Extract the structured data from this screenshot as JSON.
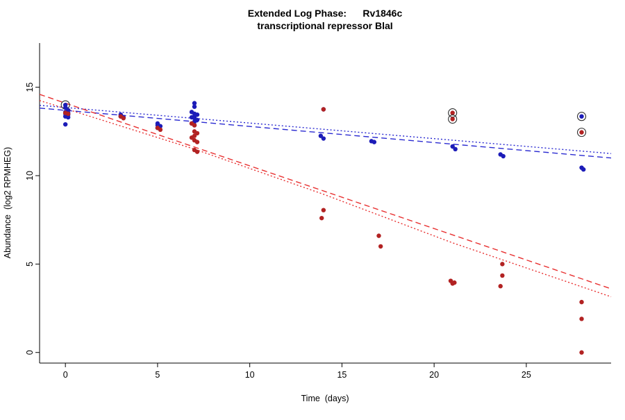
{
  "title": {
    "line1": "Extended Log Phase:      Rv1846c",
    "line2": "transcriptional repressor BlaI"
  },
  "chart_data": {
    "type": "scatter",
    "title_line1": "Extended Log Phase:      Rv1846c",
    "title_line2": "transcriptional repressor BlaI",
    "xlabel": "Time  (days)",
    "ylabel": "Abundance  (log2 RPMHEG)",
    "xlim": [
      -1.4,
      29.6
    ],
    "ylim": [
      -0.6,
      17.5
    ],
    "xticks": [
      0,
      5,
      10,
      15,
      20,
      25
    ],
    "yticks": [
      0,
      5,
      10,
      15
    ],
    "grid": false,
    "legend": null,
    "colors": {
      "blue_point": "#1c1cb8",
      "red_point": "#b22222",
      "blue_line": "#2a2ad1",
      "red_line": "#e83030",
      "circle_outline": "#2b2b2b",
      "axis": "#000000"
    },
    "series": [
      {
        "name": "blue",
        "points": [
          [
            0,
            14.0,
            true
          ],
          [
            0,
            13.85
          ],
          [
            0.15,
            13.7
          ],
          [
            0,
            13.6
          ],
          [
            0.15,
            13.55
          ],
          [
            0,
            13.5
          ],
          [
            0.15,
            13.45
          ],
          [
            0,
            13.35
          ],
          [
            0.15,
            13.3
          ],
          [
            0,
            12.9
          ],
          [
            3,
            13.45
          ],
          [
            3,
            13.35
          ],
          [
            3.15,
            13.3
          ],
          [
            5,
            12.95
          ],
          [
            5,
            12.85
          ],
          [
            5.15,
            12.8
          ],
          [
            5,
            12.7
          ],
          [
            7,
            14.1
          ],
          [
            7,
            13.9
          ],
          [
            6.85,
            13.6
          ],
          [
            7,
            13.5
          ],
          [
            7.15,
            13.45
          ],
          [
            7,
            13.35
          ],
          [
            6.85,
            13.3
          ],
          [
            7,
            13.25
          ],
          [
            7.15,
            13.15
          ],
          [
            7,
            13.05
          ],
          [
            6.85,
            12.95
          ],
          [
            7,
            12.85
          ],
          [
            14,
            13.75
          ],
          [
            13.85,
            12.25
          ],
          [
            14,
            12.1
          ],
          [
            16.6,
            11.95
          ],
          [
            16.75,
            11.9
          ],
          [
            21,
            11.65
          ],
          [
            21.15,
            11.5
          ],
          [
            23.6,
            11.2
          ],
          [
            23.75,
            11.1
          ],
          [
            28,
            13.35,
            true
          ],
          [
            28,
            10.45
          ],
          [
            28.1,
            10.35
          ]
        ]
      },
      {
        "name": "red",
        "points": [
          [
            0,
            13.55
          ],
          [
            0.15,
            13.5
          ],
          [
            3,
            13.35
          ],
          [
            3.15,
            13.25
          ],
          [
            5,
            12.7
          ],
          [
            5.15,
            12.6
          ],
          [
            6.85,
            12.95
          ],
          [
            7,
            12.85
          ],
          [
            7,
            12.5
          ],
          [
            7.15,
            12.4
          ],
          [
            7,
            12.25
          ],
          [
            6.85,
            12.15
          ],
          [
            7,
            12.0
          ],
          [
            7.15,
            11.9
          ],
          [
            7,
            11.45
          ],
          [
            7.15,
            11.35
          ],
          [
            14,
            13.75
          ],
          [
            14,
            8.05
          ],
          [
            13.9,
            7.6
          ],
          [
            17,
            6.6
          ],
          [
            17.1,
            6.0
          ],
          [
            20.9,
            4.05
          ],
          [
            21.1,
            3.95
          ],
          [
            21,
            3.9
          ],
          [
            23.7,
            5.0
          ],
          [
            23.7,
            4.35
          ],
          [
            23.6,
            3.75
          ],
          [
            21,
            13.55,
            true
          ],
          [
            21,
            13.2,
            true
          ],
          [
            28,
            12.45,
            true
          ],
          [
            28,
            2.85
          ],
          [
            28,
            1.9
          ],
          [
            28,
            0.0
          ]
        ]
      }
    ],
    "trend_lines": [
      {
        "series": "blue",
        "style": "dashed",
        "points": [
          [
            -1.4,
            13.82
          ],
          [
            29.6,
            11.0
          ]
        ]
      },
      {
        "series": "blue",
        "style": "dotted",
        "points": [
          [
            -1.4,
            13.98
          ],
          [
            29.6,
            11.25
          ]
        ]
      },
      {
        "series": "red",
        "style": "dashed",
        "points": [
          [
            -1.4,
            14.6
          ],
          [
            29.6,
            3.6
          ]
        ]
      },
      {
        "series": "red",
        "style": "dotted",
        "points": [
          [
            -1.4,
            14.25
          ],
          [
            7,
            11.5
          ],
          [
            14,
            8.95
          ],
          [
            21,
            6.2
          ],
          [
            29.6,
            3.15
          ]
        ]
      }
    ]
  }
}
